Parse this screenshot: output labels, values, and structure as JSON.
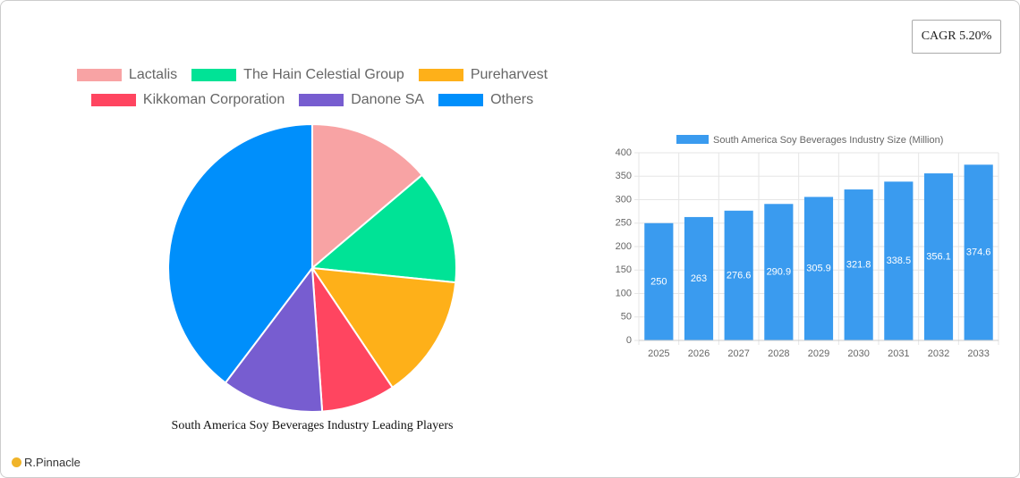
{
  "cagr": "CAGR 5.20%",
  "brand": "R.Pinnacle",
  "chart_data": [
    {
      "type": "pie",
      "title": "South America Soy Beverages Industry Leading Players",
      "categories": [
        "Lactalis",
        "The Hain Celestial Group",
        "Pureharvest",
        "Kikkoman Corporation",
        "Danone SA",
        "Others"
      ],
      "values": [
        13.8,
        12.8,
        14,
        8.3,
        11.4,
        39.7
      ],
      "colors": [
        "#f8a3a4",
        "#00e396",
        "#feb019",
        "#ff4560",
        "#775dd0",
        "#008ffb"
      ]
    },
    {
      "type": "bar",
      "categories": [
        "2025",
        "2026",
        "2027",
        "2028",
        "2029",
        "2030",
        "2031",
        "2032",
        "2033"
      ],
      "series": [
        {
          "name": "South America Soy Beverages Industry Size (Million)",
          "color": "#3a9bef",
          "values": [
            250,
            263,
            276.6,
            290.9,
            305.9,
            321.8,
            338.5,
            356.1,
            374.6
          ]
        }
      ],
      "ylim": [
        0,
        400
      ],
      "yticks": [
        0,
        50,
        100,
        150,
        200,
        250,
        300,
        350,
        400
      ],
      "grid": true
    }
  ]
}
